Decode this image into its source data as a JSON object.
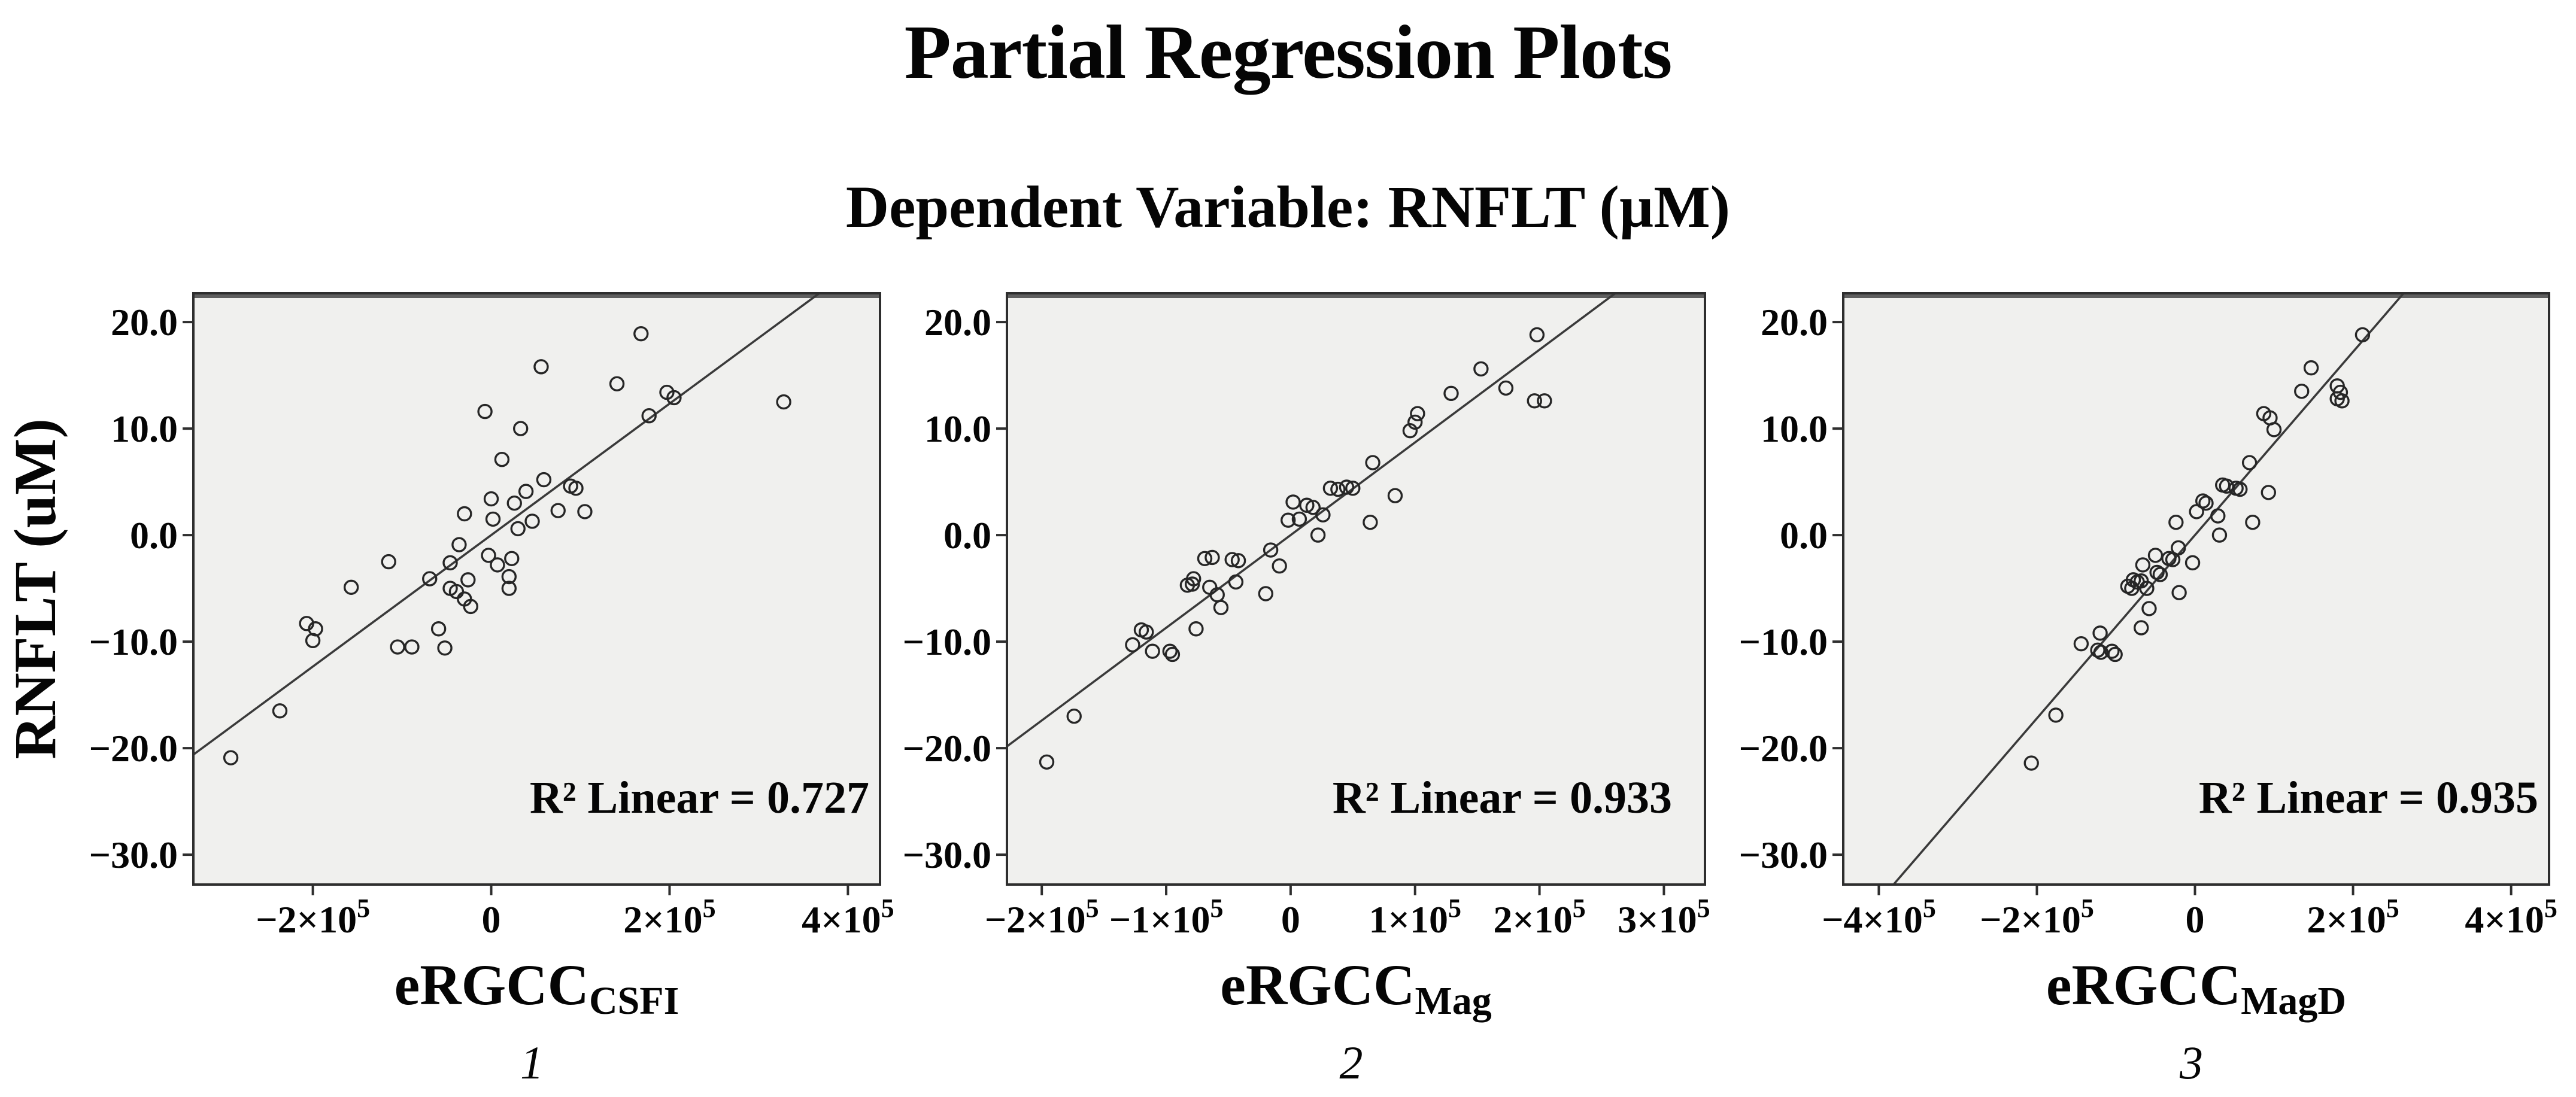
{
  "figure": {
    "title": "Partial Regression Plots",
    "subtitle": "Dependent Variable: RNFLT (µM)"
  },
  "style": {
    "plot_bg": "#f0f0ee",
    "frame_color": "#2e2e2e",
    "frame_top_color": "#5f5f5f",
    "marker_color": "#262626",
    "line_color": "#3a3a3a",
    "text_color": "#050505"
  },
  "chart_data": [
    {
      "type": "scatter",
      "index_label": "1",
      "xlabel_main": "eRGCC",
      "xlabel_sub": "CSFI",
      "ylabel": "RNFLT (uM)",
      "r2_label": "R² Linear = 0.727",
      "legend_position": "none",
      "grid": false,
      "xlim": [
        -334000,
        436000
      ],
      "ylim": [
        -32.8,
        22.7
      ],
      "xticks": [
        -200000,
        0,
        200000,
        400000
      ],
      "yticks": [
        20.0,
        10.0,
        0.0,
        -10.0,
        -20.0,
        -30.0
      ],
      "regression_line": {
        "slope": 6.17e-05,
        "intercept": 0.0
      },
      "points": [
        [
          -292000,
          -20.9
        ],
        [
          -237000,
          -16.5
        ],
        [
          -207000,
          -8.3
        ],
        [
          -200000,
          -9.9
        ],
        [
          -197000,
          -8.8
        ],
        [
          -157000,
          -4.9
        ],
        [
          -115000,
          -2.5
        ],
        [
          -105000,
          -10.5
        ],
        [
          -89000,
          -10.5
        ],
        [
          -69000,
          -4.1
        ],
        [
          -59000,
          -8.8
        ],
        [
          -52000,
          -10.6
        ],
        [
          -46000,
          -2.6
        ],
        [
          -46000,
          -5.0
        ],
        [
          -39000,
          -5.3
        ],
        [
          -36000,
          -0.9
        ],
        [
          -30000,
          2.0
        ],
        [
          -30000,
          -6.0
        ],
        [
          -26000,
          -4.2
        ],
        [
          -23000,
          -6.7
        ],
        [
          -7000,
          11.6
        ],
        [
          -3000,
          -1.9
        ],
        [
          0,
          3.4
        ],
        [
          2000,
          1.5
        ],
        [
          7000,
          -2.8
        ],
        [
          12000,
          7.1
        ],
        [
          20000,
          -3.9
        ],
        [
          20000,
          -5.0
        ],
        [
          23000,
          -2.2
        ],
        [
          26000,
          3.0
        ],
        [
          30000,
          0.6
        ],
        [
          33000,
          10.0
        ],
        [
          39000,
          4.1
        ],
        [
          46000,
          1.3
        ],
        [
          56000,
          15.8
        ],
        [
          59000,
          5.2
        ],
        [
          75000,
          2.3
        ],
        [
          89000,
          4.6
        ],
        [
          95000,
          4.4
        ],
        [
          105000,
          2.2
        ],
        [
          141000,
          14.2
        ],
        [
          168000,
          18.9
        ],
        [
          177000,
          11.2
        ],
        [
          197000,
          13.4
        ],
        [
          205000,
          12.9
        ],
        [
          328000,
          12.5
        ]
      ]
    },
    {
      "type": "scatter",
      "index_label": "2",
      "xlabel_main": "eRGCC",
      "xlabel_sub": "Mag",
      "ylabel": "",
      "r2_label": "R² Linear = 0.933",
      "legend_position": "none",
      "grid": false,
      "xlim": [
        -228000,
        333000
      ],
      "ylim": [
        -32.8,
        22.7
      ],
      "xticks": [
        -200000,
        -100000,
        0,
        100000,
        200000,
        300000
      ],
      "yticks": [
        20.0,
        10.0,
        0.0,
        -10.0,
        -20.0,
        -30.0
      ],
      "regression_line": {
        "slope": 8.7e-05,
        "intercept": 0.0
      },
      "points": [
        [
          -196000,
          -21.3
        ],
        [
          -174000,
          -17.0
        ],
        [
          -127000,
          -10.3
        ],
        [
          -120000,
          -8.9
        ],
        [
          -116000,
          -9.1
        ],
        [
          -111000,
          -10.9
        ],
        [
          -97000,
          -10.9
        ],
        [
          -95000,
          -11.2
        ],
        [
          -83000,
          -4.7
        ],
        [
          -79000,
          -4.6
        ],
        [
          -78000,
          -4.1
        ],
        [
          -76000,
          -8.8
        ],
        [
          -69000,
          -2.2
        ],
        [
          -65000,
          -4.9
        ],
        [
          -63000,
          -2.1
        ],
        [
          -59000,
          -5.6
        ],
        [
          -56000,
          -6.8
        ],
        [
          -47000,
          -2.3
        ],
        [
          -44000,
          -4.4
        ],
        [
          -42000,
          -2.4
        ],
        [
          -20000,
          -5.5
        ],
        [
          -16000,
          -1.4
        ],
        [
          -9000,
          -2.9
        ],
        [
          -2000,
          1.4
        ],
        [
          2000,
          3.1
        ],
        [
          7000,
          1.5
        ],
        [
          13000,
          2.8
        ],
        [
          18000,
          2.6
        ],
        [
          22000,
          0.0
        ],
        [
          26000,
          1.9
        ],
        [
          32000,
          4.4
        ],
        [
          38000,
          4.3
        ],
        [
          45000,
          4.5
        ],
        [
          50000,
          4.4
        ],
        [
          64000,
          1.2
        ],
        [
          66000,
          6.8
        ],
        [
          84000,
          3.7
        ],
        [
          96000,
          9.8
        ],
        [
          100000,
          10.6
        ],
        [
          102000,
          11.4
        ],
        [
          129000,
          13.3
        ],
        [
          153000,
          15.6
        ],
        [
          173000,
          13.8
        ],
        [
          196000,
          12.6
        ],
        [
          204000,
          12.6
        ],
        [
          198000,
          18.8
        ]
      ]
    },
    {
      "type": "scatter",
      "index_label": "3",
      "xlabel_main": "eRGCC",
      "xlabel_sub": "MagD",
      "ylabel": "",
      "r2_label": "R² Linear = 0.935",
      "legend_position": "none",
      "grid": false,
      "xlim": [
        -445000,
        448000
      ],
      "ylim": [
        -32.8,
        22.7
      ],
      "xticks": [
        -400000,
        -200000,
        0,
        200000,
        400000
      ],
      "yticks": [
        20.0,
        10.0,
        0.0,
        -10.0,
        -20.0,
        -30.0
      ],
      "regression_line": {
        "slope": 8.6e-05,
        "intercept": 0.0
      },
      "points": [
        [
          -207000,
          -21.4
        ],
        [
          -176000,
          -16.9
        ],
        [
          -144000,
          -10.2
        ],
        [
          -123000,
          -10.8
        ],
        [
          -119000,
          -11.0
        ],
        [
          -120000,
          -9.2
        ],
        [
          -105000,
          -10.9
        ],
        [
          -101000,
          -11.2
        ],
        [
          -85000,
          -4.8
        ],
        [
          -80000,
          -5.0
        ],
        [
          -78000,
          -4.2
        ],
        [
          -73000,
          -4.4
        ],
        [
          -68000,
          -4.3
        ],
        [
          -68000,
          -8.7
        ],
        [
          -66000,
          -2.8
        ],
        [
          -61000,
          -5.0
        ],
        [
          -58000,
          -6.9
        ],
        [
          -50000,
          -1.9
        ],
        [
          -48000,
          -3.5
        ],
        [
          -44000,
          -3.7
        ],
        [
          -33000,
          -2.2
        ],
        [
          -28000,
          -2.3
        ],
        [
          -24000,
          1.2
        ],
        [
          -21000,
          -1.2
        ],
        [
          -20000,
          -5.4
        ],
        [
          -3000,
          -2.6
        ],
        [
          2000,
          2.2
        ],
        [
          10000,
          3.2
        ],
        [
          14000,
          3.0
        ],
        [
          29000,
          1.8
        ],
        [
          31000,
          0.0
        ],
        [
          35000,
          4.7
        ],
        [
          40000,
          4.6
        ],
        [
          52000,
          4.4
        ],
        [
          57000,
          4.3
        ],
        [
          69000,
          6.8
        ],
        [
          73000,
          1.2
        ],
        [
          87000,
          11.4
        ],
        [
          93000,
          4.0
        ],
        [
          95000,
          11.0
        ],
        [
          100000,
          9.9
        ],
        [
          135000,
          13.5
        ],
        [
          147000,
          15.7
        ],
        [
          180000,
          14.0
        ],
        [
          184000,
          13.4
        ],
        [
          180000,
          12.8
        ],
        [
          186000,
          12.6
        ],
        [
          212000,
          18.8
        ]
      ]
    }
  ]
}
